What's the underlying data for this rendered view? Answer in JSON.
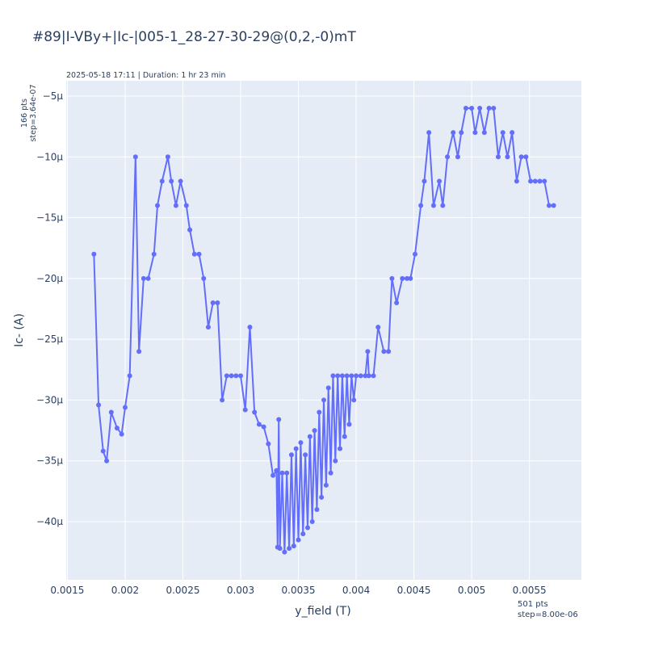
{
  "chart_data": {
    "type": "line",
    "title": "#89|I-VBy+|Ic-|005-1_28-27-30-29@(0,2,-0)mT",
    "subtitle": "2025-05-18 17:11 | Duration: 1 hr 23 min",
    "x_label": "y_field (T)",
    "y_label": "Ic- (A)",
    "y_note": [
      "166 pts",
      "step=3.64e-07"
    ],
    "x_note": [
      "501 pts",
      "step=8.00e-06"
    ],
    "xlim": [
      0.00149,
      0.00595
    ],
    "ylim": [
      -4.478e-05,
      -3.74e-06
    ],
    "xticks": [
      0.0015,
      0.002,
      0.0025,
      0.003,
      0.0035,
      0.004,
      0.0045,
      0.005,
      0.0055
    ],
    "yticks": [
      {
        "value": -4e-05,
        "label": "−40µ"
      },
      {
        "value": -3.5e-05,
        "label": "−35µ"
      },
      {
        "value": -3e-05,
        "label": "−30µ"
      },
      {
        "value": -2.5e-05,
        "label": "−25µ"
      },
      {
        "value": -2e-05,
        "label": "−20µ"
      },
      {
        "value": -1.5e-05,
        "label": "−15µ"
      },
      {
        "value": -1e-05,
        "label": "−10µ"
      },
      {
        "value": -5e-06,
        "label": "−5µ"
      }
    ],
    "grid": true,
    "series": [
      {
        "name": "Ic-",
        "color": "#636efa",
        "x": [
          0.00173,
          0.00177,
          0.00181,
          0.00184,
          0.00188,
          0.00193,
          0.00197,
          0.002,
          0.00204,
          0.00209,
          0.00212,
          0.00216,
          0.0022,
          0.00225,
          0.00228,
          0.00232,
          0.00237,
          0.0024,
          0.00244,
          0.00248,
          0.00253,
          0.00256,
          0.0026,
          0.00264,
          0.00268,
          0.00272,
          0.00276,
          0.0028,
          0.00284,
          0.00288,
          0.00292,
          0.00296,
          0.003,
          0.00304,
          0.00308,
          0.00312,
          0.00316,
          0.0032,
          0.00324,
          0.00328,
          0.00331,
          0.00332,
          0.00333,
          0.00334,
          0.00336,
          0.00338,
          0.0034,
          0.00342,
          0.00344,
          0.00346,
          0.00348,
          0.0035,
          0.00352,
          0.00354,
          0.00356,
          0.00358,
          0.0036,
          0.00362,
          0.00364,
          0.00366,
          0.00368,
          0.0037,
          0.00372,
          0.00374,
          0.00376,
          0.00378,
          0.0038,
          0.00382,
          0.00384,
          0.00386,
          0.00388,
          0.0039,
          0.00392,
          0.00394,
          0.00396,
          0.00398,
          0.004,
          0.00404,
          0.00408,
          0.0041,
          0.00411,
          0.00415,
          0.00419,
          0.00424,
          0.00428,
          0.00431,
          0.00435,
          0.0044,
          0.00444,
          0.00447,
          0.00451,
          0.00456,
          0.00459,
          0.00463,
          0.00467,
          0.00472,
          0.00475,
          0.00479,
          0.00484,
          0.00488,
          0.00491,
          0.00495,
          0.005,
          0.00503,
          0.00507,
          0.00511,
          0.00515,
          0.00519,
          0.00523,
          0.00527,
          0.00531,
          0.00535,
          0.00539,
          0.00543,
          0.00547,
          0.00551,
          0.00555,
          0.00559,
          0.00563,
          0.00567,
          0.00571
        ],
        "values": [
          -1.8e-05,
          -3.04e-05,
          -3.42e-05,
          -3.5e-05,
          -3.1e-05,
          -3.23e-05,
          -3.28e-05,
          -3.06e-05,
          -2.8e-05,
          -1e-05,
          -2.6e-05,
          -2e-05,
          -2e-05,
          -1.8e-05,
          -1.4e-05,
          -1.2e-05,
          -1e-05,
          -1.2e-05,
          -1.4e-05,
          -1.2e-05,
          -1.4e-05,
          -1.6e-05,
          -1.8e-05,
          -1.8e-05,
          -2e-05,
          -2.4e-05,
          -2.2e-05,
          -2.2e-05,
          -3e-05,
          -2.8e-05,
          -2.8e-05,
          -2.8e-05,
          -2.8e-05,
          -3.08e-05,
          -2.4e-05,
          -3.1e-05,
          -3.2e-05,
          -3.22e-05,
          -3.36e-05,
          -3.62e-05,
          -3.58e-05,
          -4.21e-05,
          -3.16e-05,
          -4.22e-05,
          -3.6e-05,
          -4.25e-05,
          -3.6e-05,
          -4.22e-05,
          -3.45e-05,
          -4.2e-05,
          -3.4e-05,
          -4.15e-05,
          -3.35e-05,
          -4.1e-05,
          -3.45e-05,
          -4.05e-05,
          -3.3e-05,
          -4e-05,
          -3.25e-05,
          -3.9e-05,
          -3.1e-05,
          -3.8e-05,
          -3e-05,
          -3.7e-05,
          -2.9e-05,
          -3.6e-05,
          -2.8e-05,
          -3.5e-05,
          -2.8e-05,
          -3.4e-05,
          -2.8e-05,
          -3.3e-05,
          -2.8e-05,
          -3.2e-05,
          -2.8e-05,
          -3e-05,
          -2.8e-05,
          -2.8e-05,
          -2.8e-05,
          -2.6e-05,
          -2.8e-05,
          -2.8e-05,
          -2.4e-05,
          -2.6e-05,
          -2.6e-05,
          -2e-05,
          -2.2e-05,
          -2e-05,
          -2e-05,
          -2e-05,
          -1.8e-05,
          -1.4e-05,
          -1.2e-05,
          -8e-06,
          -1.4e-05,
          -1.2e-05,
          -1.4e-05,
          -1e-05,
          -8e-06,
          -1e-05,
          -8e-06,
          -6e-06,
          -6e-06,
          -8e-06,
          -6e-06,
          -8e-06,
          -6e-06,
          -6e-06,
          -1e-05,
          -8e-06,
          -1e-05,
          -8e-06,
          -1.2e-05,
          -1e-05,
          -1e-05,
          -1.2e-05,
          -1.2e-05,
          -1.2e-05,
          -1.2e-05,
          -1.4e-05,
          -1.4e-05
        ]
      }
    ]
  }
}
